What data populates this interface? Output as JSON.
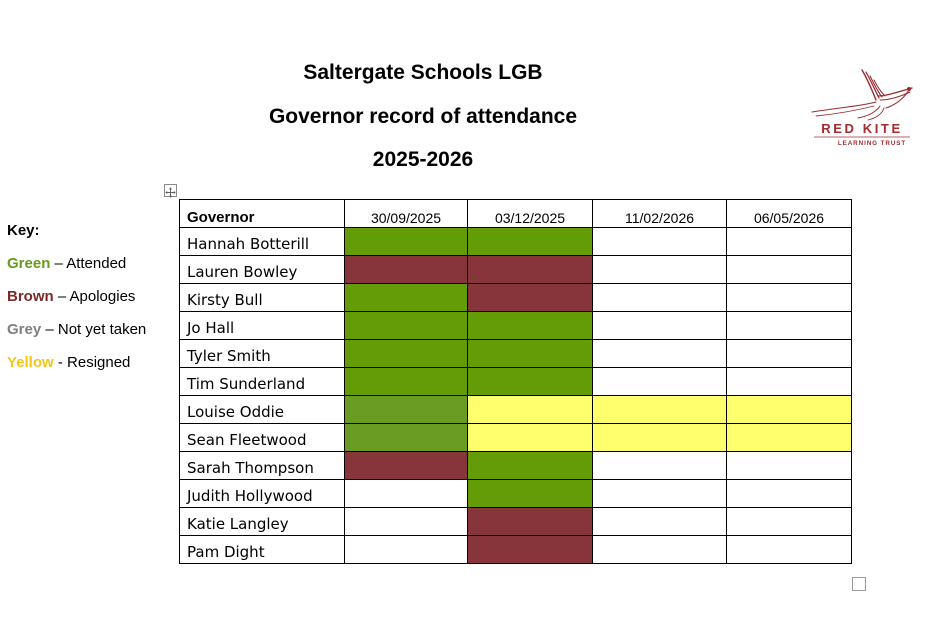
{
  "header": {
    "line1": "Saltergate Schools LGB",
    "line2": "Governor record of attendance",
    "line3": "2025-2026"
  },
  "logo": {
    "name": "RED KITE",
    "subtitle": "LEARNING TRUST"
  },
  "key": {
    "title": "Key:",
    "items": [
      {
        "word": "Green",
        "text": "– Attended",
        "color": "#659b1c"
      },
      {
        "word": "Brown",
        "text": "– Apologies",
        "color": "#7a2a2a"
      },
      {
        "word": "Grey",
        "text": "– Not yet taken",
        "color": "#808080"
      },
      {
        "word": "Yellow",
        "text": "- Resigned",
        "color": "#f5c518"
      }
    ]
  },
  "status_colors": {
    "attended": "#639c06",
    "attended_alt": "#6a9c24",
    "apologies": "#86363b",
    "resigned": "#ffff6e",
    "blank": "#ffffff"
  },
  "table": {
    "governor_header": "Governor",
    "dates": [
      "30/09/2025",
      "03/12/2025",
      "11/02/2026",
      "06/05/2026"
    ],
    "rows": [
      {
        "name": "Hannah Botterill",
        "status": [
          "attended",
          "attended",
          "blank",
          "blank"
        ]
      },
      {
        "name": "Lauren Bowley",
        "status": [
          "apologies",
          "apologies",
          "blank",
          "blank"
        ]
      },
      {
        "name": "Kirsty Bull",
        "status": [
          "attended",
          "apologies",
          "blank",
          "blank"
        ]
      },
      {
        "name": "Jo Hall",
        "status": [
          "attended",
          "attended",
          "blank",
          "blank"
        ]
      },
      {
        "name": "Tyler Smith",
        "status": [
          "attended",
          "attended",
          "blank",
          "blank"
        ]
      },
      {
        "name": "Tim Sunderland",
        "status": [
          "attended",
          "attended",
          "blank",
          "blank"
        ]
      },
      {
        "name": "Louise Oddie",
        "status": [
          "attended_alt",
          "resigned",
          "resigned",
          "resigned"
        ]
      },
      {
        "name": "Sean Fleetwood",
        "status": [
          "attended_alt",
          "resigned",
          "resigned",
          "resigned"
        ]
      },
      {
        "name": "Sarah Thompson",
        "status": [
          "apologies",
          "attended",
          "blank",
          "blank"
        ]
      },
      {
        "name": "Judith Hollywood",
        "status": [
          "blank",
          "attended",
          "blank",
          "blank"
        ]
      },
      {
        "name": "Katie Langley",
        "status": [
          "blank",
          "apologies",
          "blank",
          "blank"
        ]
      },
      {
        "name": "Pam Dight",
        "status": [
          "blank",
          "apologies",
          "blank",
          "blank"
        ]
      }
    ]
  }
}
